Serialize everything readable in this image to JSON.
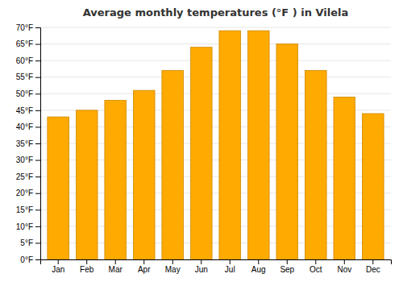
{
  "chart_data": {
    "type": "bar",
    "title": "Average monthly temperatures (°F ) in Vilela",
    "categories": [
      "Jan",
      "Feb",
      "Mar",
      "Apr",
      "May",
      "Jun",
      "Jul",
      "Aug",
      "Sep",
      "Oct",
      "Nov",
      "Dec"
    ],
    "values": [
      43,
      45,
      48,
      51,
      57,
      64,
      69,
      69,
      65,
      57,
      49,
      44
    ],
    "color": "#FFAA00",
    "ylim": [
      0,
      70
    ],
    "yticks": [
      {
        "value": 0,
        "label": "0°F"
      },
      {
        "value": 5,
        "label": "5°F"
      },
      {
        "value": 10,
        "label": "10°F"
      },
      {
        "value": 15,
        "label": "15°F"
      },
      {
        "value": 20,
        "label": "20°F"
      },
      {
        "value": 25,
        "label": "25°F"
      },
      {
        "value": 30,
        "label": "30°F"
      },
      {
        "value": 35,
        "label": "35°F"
      },
      {
        "value": 40,
        "label": "40°F"
      },
      {
        "value": 45,
        "label": "45°F"
      },
      {
        "value": 50,
        "label": "50°F"
      },
      {
        "value": 55,
        "label": "55°F"
      },
      {
        "value": 60,
        "label": "60°F"
      },
      {
        "value": 65,
        "label": "65°F"
      },
      {
        "value": 70,
        "label": "70°F"
      }
    ],
    "grid": true
  }
}
